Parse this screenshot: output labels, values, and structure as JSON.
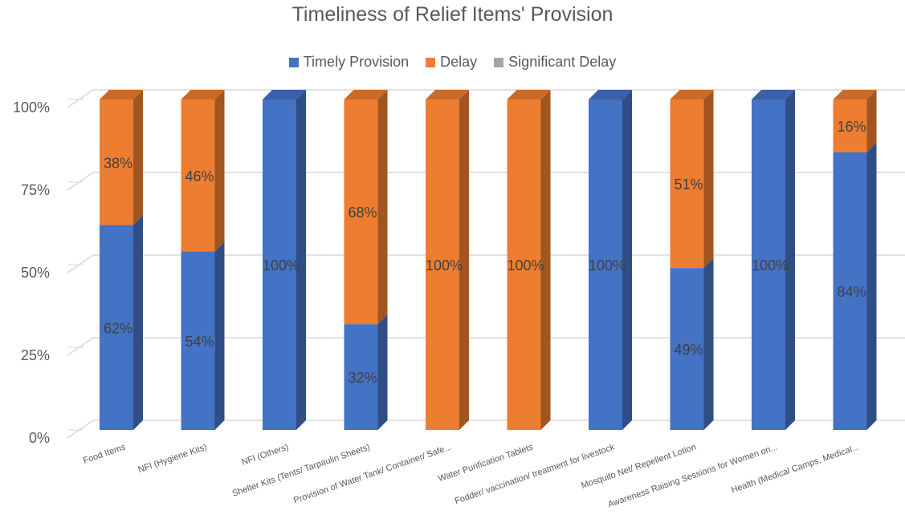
{
  "chart_data": {
    "type": "bar",
    "stacked": true,
    "three_d": true,
    "title": "Timeliness of Relief Items' Provision",
    "xlabel": "",
    "ylabel": "",
    "ylim": [
      0,
      100
    ],
    "y_ticks": [
      "0%",
      "25%",
      "50%",
      "75%",
      "100%"
    ],
    "y_tick_values": [
      0,
      25,
      50,
      75,
      100
    ],
    "grid": true,
    "legend_position": "top",
    "categories": [
      "Food Items",
      "NFI (Hygiene Kits)",
      "NFI (Others)",
      "Shelter Kits (Tents/ Tarpaulin Sheets)",
      "Provision of Water Tank/ Container/ Safe...",
      "Water Purification Tablets",
      "Fodder/ vaccination/ treatment for livestock",
      "Mosquito Net/ Repellent Lotion",
      "Awareness Raising Sessions for Women on...",
      "Health (Medical Camps, Medical..."
    ],
    "series": [
      {
        "name": "Timely Provision",
        "color": "#4472C4",
        "values": [
          62,
          54,
          100,
          32,
          0,
          0,
          100,
          49,
          100,
          84
        ],
        "labels": [
          "62%",
          "54%",
          "100%",
          "32%",
          "",
          "",
          "100%",
          "49%",
          "100%",
          "84%"
        ]
      },
      {
        "name": "Delay",
        "color": "#ED7D31",
        "values": [
          38,
          46,
          0,
          68,
          100,
          100,
          0,
          51,
          0,
          16
        ],
        "labels": [
          "38%",
          "46%",
          "",
          "68%",
          "100%",
          "100%",
          "",
          "51%",
          "",
          "16%"
        ]
      },
      {
        "name": "Significant Delay",
        "color": "#A5A5A5",
        "values": [
          0,
          0,
          0,
          0,
          0,
          0,
          0,
          0,
          0,
          0
        ],
        "labels": [
          "",
          "",
          "",
          "",
          "",
          "",
          "",
          "",
          "",
          ""
        ]
      }
    ]
  }
}
